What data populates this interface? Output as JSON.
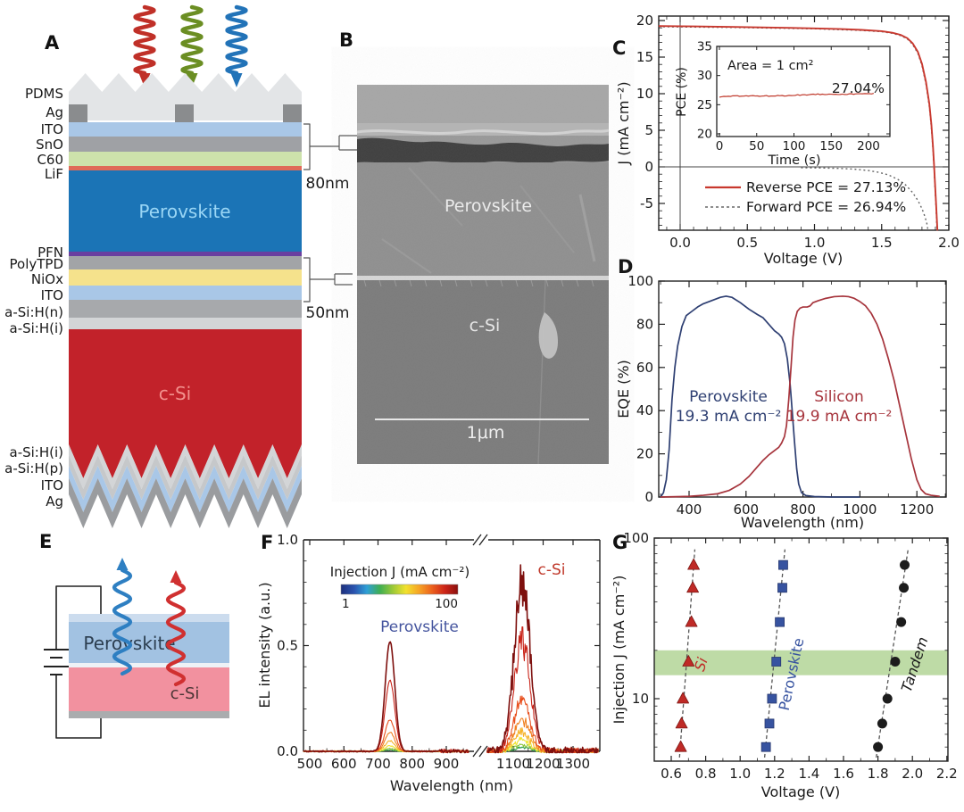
{
  "panels": {
    "a": "A",
    "b": "B",
    "c": "C",
    "d": "D",
    "e": "E",
    "f": "F",
    "g": "G"
  },
  "panel_a": {
    "layer_labels_top": [
      "PDMS",
      "Ag",
      "ITO",
      "SnO",
      "C60",
      "LiF"
    ],
    "layer_labels_mid": [
      "PFN",
      "PolyTPD",
      "NiOx",
      "ITO",
      "a-Si:H(n)",
      "a-Si:H(i)"
    ],
    "layer_labels_bot": [
      "a-Si:H(i)",
      "a-Si:H(p)",
      "ITO",
      "Ag"
    ],
    "perovskite_label": "Perovskite",
    "csi_label": "c-Si",
    "thickness_80": "80nm",
    "thickness_50": "50nm",
    "colors": {
      "pdms": "#e3e5e7",
      "ag": "#8a8c8e",
      "ito": "#a9c7e7",
      "sno": "#9fa1a5",
      "c60": "#cde2ab",
      "lif": "#e06a58",
      "perovskite": "#1b74b6",
      "pfn": "#6a3fa0",
      "polytpd": "#a2a4a7",
      "niox": "#f5e28c",
      "asi_n": "#a7a9ac",
      "asi_i": "#d3d5d7",
      "csi": "#c2222a",
      "asi_p": "#c6c8ca",
      "ito2": "#a9c7e7",
      "ag2": "#9a9c9f",
      "perovskite_text": "#9ad6f5",
      "csi_text": "#f2918d"
    },
    "arrow_colors": [
      "#c03028",
      "#6b8e23",
      "#2273b8"
    ]
  },
  "panel_b": {
    "perovskite_label": "Perovskite",
    "csi_label": "c-Si",
    "scalebar_label": "1μm"
  },
  "panel_e": {
    "perovskite_label": "Perovskite",
    "csi_label": "c-Si",
    "arrow_colors": [
      "#2e7fc2",
      "#d03030"
    ]
  },
  "chart_data": [
    {
      "id": "jv",
      "type": "line",
      "xlabel": "Voltage (V)",
      "ylabel": "J (mA cm⁻²)",
      "xlim": [
        -0.16,
        2.0
      ],
      "ylim": [
        -8.7,
        20
      ],
      "xticks": [
        0.0,
        0.5,
        1.0,
        1.5,
        2.0
      ],
      "xtick_labels": [
        "0.0",
        "0.5",
        "1.0",
        "1.5",
        "2.0"
      ],
      "yticks": [
        -5,
        0,
        5,
        10,
        15,
        20
      ],
      "series": [
        {
          "name": "Reverse PCE = 27.13%",
          "color": "#c8382e",
          "style": "solid",
          "points": [
            [
              -0.16,
              19.25
            ],
            [
              0.1,
              19.2
            ],
            [
              0.4,
              19.12
            ],
            [
              0.7,
              19.03
            ],
            [
              1.0,
              18.93
            ],
            [
              1.2,
              18.83
            ],
            [
              1.35,
              18.72
            ],
            [
              1.5,
              18.55
            ],
            [
              1.58,
              18.33
            ],
            [
              1.64,
              18.05
            ],
            [
              1.69,
              17.6
            ],
            [
              1.73,
              16.9
            ],
            [
              1.77,
              15.7
            ],
            [
              1.8,
              14.1
            ],
            [
              1.83,
              11.6
            ],
            [
              1.855,
              8.6
            ],
            [
              1.87,
              5.8
            ],
            [
              1.882,
              2.8
            ],
            [
              1.89,
              0.3
            ],
            [
              1.897,
              -2.2
            ],
            [
              1.905,
              -5.0
            ],
            [
              1.915,
              -8.7
            ]
          ]
        },
        {
          "name": "Forward PCE = 26.94%",
          "color": "#666666",
          "style": "dotted",
          "points": [
            [
              -0.16,
              19.15
            ],
            [
              0.4,
              19.05
            ],
            [
              1.0,
              18.87
            ],
            [
              1.35,
              18.65
            ],
            [
              1.5,
              18.47
            ],
            [
              1.58,
              18.25
            ],
            [
              1.64,
              17.95
            ],
            [
              1.69,
              17.5
            ],
            [
              1.73,
              16.75
            ],
            [
              1.77,
              15.5
            ],
            [
              1.8,
              13.85
            ],
            [
              1.83,
              11.3
            ],
            [
              1.855,
              8.2
            ],
            [
              1.87,
              5.4
            ],
            [
              1.882,
              2.4
            ],
            [
              1.89,
              -0.2
            ],
            [
              1.897,
              -2.8
            ],
            [
              1.905,
              -5.6
            ],
            [
              1.912,
              -8.7
            ]
          ],
          "points2": [
            [
              0.9,
              -0.12
            ],
            [
              1.05,
              -0.15
            ],
            [
              1.2,
              -0.22
            ],
            [
              1.3,
              -0.32
            ],
            [
              1.4,
              -0.5
            ],
            [
              1.48,
              -0.75
            ],
            [
              1.55,
              -1.1
            ],
            [
              1.62,
              -1.7
            ],
            [
              1.68,
              -2.5
            ],
            [
              1.73,
              -3.5
            ],
            [
              1.77,
              -4.6
            ],
            [
              1.8,
              -5.7
            ],
            [
              1.82,
              -6.7
            ],
            [
              1.835,
              -7.6
            ],
            [
              1.845,
              -8.7
            ]
          ]
        }
      ]
    },
    {
      "id": "pce_inset",
      "type": "line",
      "xlabel": "Time (s)",
      "ylabel": "PCE (%)",
      "xlim": [
        0,
        220
      ],
      "ylim": [
        20,
        35
      ],
      "xticks": [
        0,
        50,
        100,
        150,
        200
      ],
      "yticks": [
        20,
        25,
        30,
        35
      ],
      "annotation": "Area = 1 cm²",
      "value_label": "27.04%",
      "color": "#c0392b",
      "trace": {
        "t_start": 0,
        "t_end": 207,
        "pce_start": 26.35,
        "pce_end": 26.95
      }
    },
    {
      "id": "eqe",
      "type": "line",
      "xlabel": "Wavelength (nm)",
      "ylabel": "EQE (%)",
      "xlim": [
        293,
        1305
      ],
      "ylim": [
        0,
        100
      ],
      "xticks": [
        400,
        600,
        800,
        1000,
        1200
      ],
      "yticks": [
        0,
        20,
        40,
        60,
        80,
        100
      ],
      "series": [
        {
          "name": "Perovskite",
          "jsc_label": "19.3 mA cm⁻²",
          "color": "#2e3f72",
          "points": [
            [
              300,
              0
            ],
            [
              310,
              2
            ],
            [
              320,
              8
            ],
            [
              330,
              22
            ],
            [
              340,
              45
            ],
            [
              350,
              60
            ],
            [
              360,
              70
            ],
            [
              375,
              79
            ],
            [
              390,
              84
            ],
            [
              410,
              86
            ],
            [
              430,
              88
            ],
            [
              450,
              89.5
            ],
            [
              480,
              91
            ],
            [
              510,
              92.5
            ],
            [
              530,
              93
            ],
            [
              550,
              92.5
            ],
            [
              580,
              90
            ],
            [
              610,
              87
            ],
            [
              640,
              84.5
            ],
            [
              660,
              83
            ],
            [
              680,
              80
            ],
            [
              700,
              77
            ],
            [
              715,
              75.5
            ],
            [
              725,
              74
            ],
            [
              735,
              71
            ],
            [
              745,
              64
            ],
            [
              755,
              52
            ],
            [
              762,
              40
            ],
            [
              770,
              26
            ],
            [
              778,
              13
            ],
            [
              785,
              6
            ],
            [
              795,
              2
            ],
            [
              810,
              0.7
            ],
            [
              840,
              0.2
            ],
            [
              900,
              0
            ],
            [
              1000,
              0
            ]
          ]
        },
        {
          "name": "Silicon",
          "jsc_label": "19.9 mA cm⁻²",
          "color": "#a6343c",
          "points": [
            [
              300,
              0
            ],
            [
              400,
              0.3
            ],
            [
              450,
              0.8
            ],
            [
              500,
              1.5
            ],
            [
              540,
              3
            ],
            [
              580,
              6
            ],
            [
              610,
              9.5
            ],
            [
              640,
              14
            ],
            [
              660,
              17
            ],
            [
              680,
              19.5
            ],
            [
              700,
              21.5
            ],
            [
              715,
              23
            ],
            [
              725,
              25
            ],
            [
              735,
              28
            ],
            [
              742,
              33
            ],
            [
              750,
              45
            ],
            [
              758,
              60
            ],
            [
              765,
              74
            ],
            [
              772,
              82
            ],
            [
              780,
              86
            ],
            [
              790,
              87.5
            ],
            [
              800,
              88
            ],
            [
              815,
              88
            ],
            [
              825,
              88.5
            ],
            [
              835,
              90
            ],
            [
              855,
              91
            ],
            [
              880,
              92
            ],
            [
              910,
              92.8
            ],
            [
              940,
              93
            ],
            [
              960,
              92.8
            ],
            [
              980,
              92
            ],
            [
              1000,
              90.5
            ],
            [
              1020,
              88.5
            ],
            [
              1040,
              85
            ],
            [
              1060,
              80
            ],
            [
              1080,
              73
            ],
            [
              1100,
              64
            ],
            [
              1120,
              54
            ],
            [
              1140,
              42
            ],
            [
              1160,
              30
            ],
            [
              1180,
              18
            ],
            [
              1200,
              8
            ],
            [
              1215,
              3.5
            ],
            [
              1230,
              1.5
            ],
            [
              1250,
              0.8
            ],
            [
              1280,
              0.3
            ]
          ]
        }
      ]
    },
    {
      "id": "el",
      "type": "line",
      "xlabel": "Wavelength (nm)",
      "ylabel": "EL intensity (a.u.)",
      "axis_break": true,
      "seg1": {
        "xlim": [
          481,
          970
        ],
        "xticks": [
          500,
          600,
          700,
          800,
          900
        ]
      },
      "seg2": {
        "xlim": [
          1012,
          1388
        ],
        "xticks": [
          1100,
          1200,
          1300
        ]
      },
      "ylim": [
        0,
        1.0
      ],
      "ytick_labels": [
        "0.0",
        "0.5",
        "1.0"
      ],
      "yticks": [
        0,
        0.5,
        1.0
      ],
      "colorbar": {
        "title": "Injection J (mA cm⁻²)",
        "min_label": "1",
        "max_label": "100",
        "colors": [
          "#1c2f7c",
          "#2a52ae",
          "#2fa0d6",
          "#3fae52",
          "#9cc937",
          "#f2e12e",
          "#f6a425",
          "#ec611d",
          "#cc2418",
          "#8a100e"
        ]
      },
      "peak_labels": [
        {
          "text": "Perovskite",
          "color": "#44549e"
        },
        {
          "text": "c-Si",
          "color": "#c0392b"
        }
      ],
      "peaks": {
        "perovskite": {
          "center": 735,
          "sigma": 14
        },
        "c_si": {
          "center": 1130,
          "sigma": 26
        }
      },
      "levels": [
        {
          "color": "#2f9e4a",
          "p": 0.006,
          "s": 0.018
        },
        {
          "color": "#8fc63c",
          "p": 0.012,
          "s": 0.032
        },
        {
          "color": "#efe32c",
          "p": 0.026,
          "s": 0.055
        },
        {
          "color": "#f6b32a",
          "p": 0.05,
          "s": 0.09
        },
        {
          "color": "#f08122",
          "p": 0.09,
          "s": 0.15
        },
        {
          "color": "#e84f1d",
          "p": 0.15,
          "s": 0.25
        },
        {
          "color": "#c92318",
          "p": 0.335,
          "s": 0.52
        },
        {
          "color": "#7e100e",
          "p": 0.52,
          "s": 0.8
        }
      ]
    },
    {
      "id": "injection",
      "type": "scatter",
      "xlabel": "Voltage (V)",
      "ylabel": "Injection J (mA cm⁻²)",
      "xlim": [
        0.5,
        2.28
      ],
      "ylog_lim": [
        4.1,
        100
      ],
      "xticks": [
        0.6,
        0.8,
        1.0,
        1.2,
        1.4,
        1.6,
        1.8,
        2.0,
        2.2
      ],
      "ytick_major": [
        {
          "v": 10,
          "label": "10"
        },
        {
          "v": 100,
          "label": "100"
        }
      ],
      "ytick_minor": [
        5,
        6,
        7,
        8,
        9,
        20,
        30,
        40,
        50,
        60,
        70,
        80,
        90
      ],
      "band": {
        "jmin": 14,
        "jmax": 20,
        "color": "#b7d79c"
      },
      "series": [
        {
          "name": "Si",
          "marker": "triangle",
          "color": "#bf2a26",
          "italic": true,
          "points": [
            [
              0.655,
              5
            ],
            [
              0.66,
              7
            ],
            [
              0.668,
              10
            ],
            [
              0.7,
              17
            ],
            [
              0.717,
              30
            ],
            [
              0.725,
              49
            ],
            [
              0.73,
              68
            ]
          ],
          "trend": [
            [
              0.648,
              4.3
            ],
            [
              0.737,
              85
            ]
          ],
          "label_pos": [
            0.8,
            16
          ],
          "label_rot": -72
        },
        {
          "name": "Perovskite",
          "marker": "square",
          "color": "#3753a0",
          "italic": false,
          "points": [
            [
              1.15,
              5
            ],
            [
              1.17,
              7
            ],
            [
              1.185,
              10
            ],
            [
              1.21,
              17
            ],
            [
              1.23,
              30
            ],
            [
              1.245,
              49
            ],
            [
              1.25,
              68
            ]
          ],
          "trend": [
            [
              1.142,
              4.3
            ],
            [
              1.26,
              85
            ]
          ],
          "label_pos": [
            1.325,
            14
          ],
          "label_rot": -78
        },
        {
          "name": "Tandem",
          "marker": "circle",
          "color": "#1c1c1c",
          "italic": true,
          "points": [
            [
              1.8,
              5
            ],
            [
              1.825,
              7
            ],
            [
              1.855,
              10
            ],
            [
              1.9,
              17
            ],
            [
              1.935,
              30
            ],
            [
              1.95,
              49
            ],
            [
              1.955,
              68
            ]
          ],
          "trend": [
            [
              1.79,
              4.3
            ],
            [
              1.975,
              85
            ]
          ],
          "label_pos": [
            2.04,
            16
          ],
          "label_rot": -72
        }
      ]
    }
  ]
}
